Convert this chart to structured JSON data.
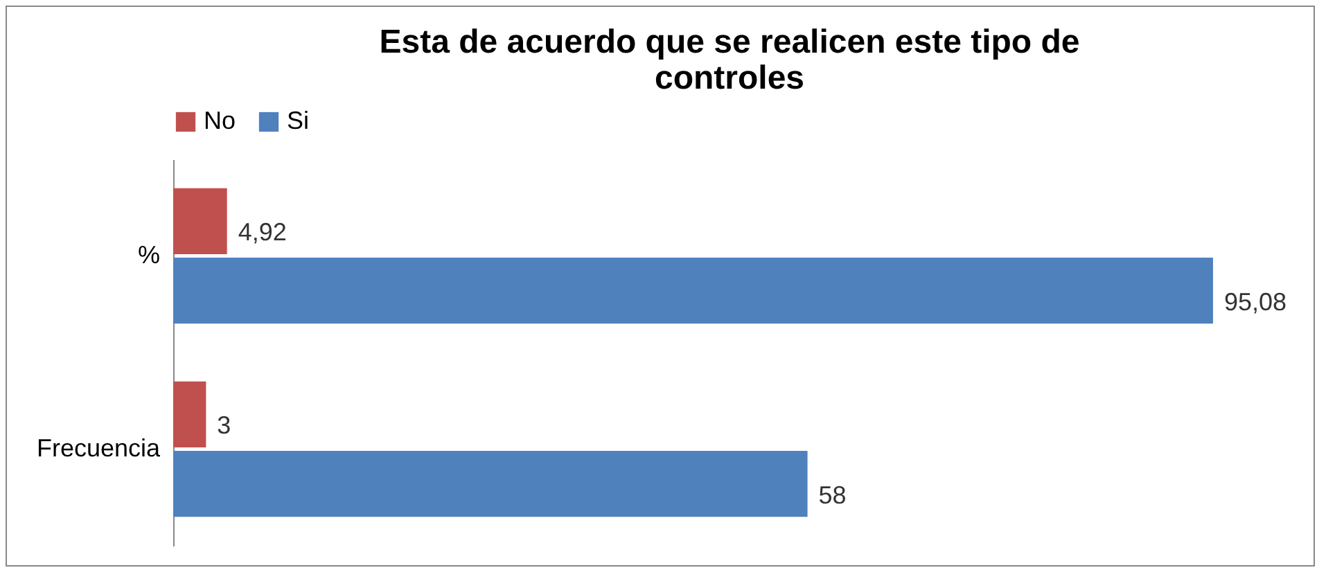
{
  "chart_data": {
    "type": "bar",
    "orientation": "horizontal",
    "title": "Esta de acuerdo que se realicen este tipo de controles",
    "categories": [
      "%",
      "Frecuencia"
    ],
    "series": [
      {
        "name": "No",
        "color": "#c0504d",
        "values": [
          4.92,
          3
        ],
        "value_labels": [
          "4,92",
          "3"
        ]
      },
      {
        "name": "Si",
        "color": "#4f81bd",
        "values": [
          95.08,
          58
        ],
        "value_labels": [
          "95,08",
          "58"
        ]
      }
    ],
    "legend": "top",
    "tick_labels": "y"
  }
}
